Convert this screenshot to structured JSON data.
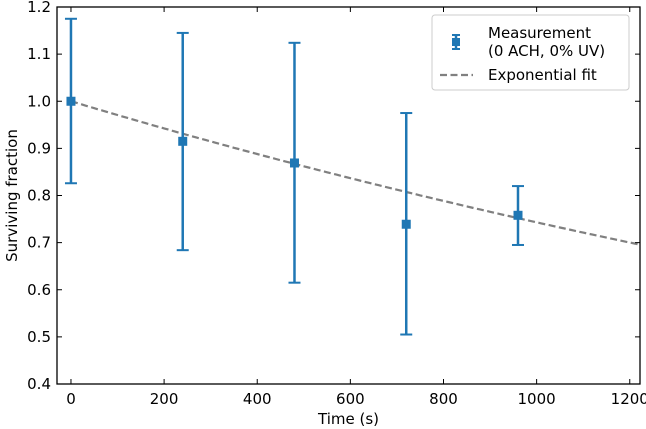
{
  "chart_data": {
    "type": "scatter",
    "title": "",
    "xlabel": "Time (s)",
    "ylabel": "Surviving fraction",
    "xlim": [
      -30,
      1222
    ],
    "ylim": [
      0.4,
      1.2
    ],
    "xticks": [
      0,
      200,
      400,
      600,
      800,
      1000,
      1200
    ],
    "yticks": [
      0.4,
      0.5,
      0.6,
      0.7,
      0.8,
      0.9,
      1.0,
      1.1,
      1.2
    ],
    "ytick_labels": [
      "0.4",
      "0.5",
      "0.6",
      "0.7",
      "0.8",
      "0.9",
      "1.0",
      "1.1",
      "1.2"
    ],
    "legend_position": "top-right",
    "series": [
      {
        "name": "Measurement (0 ACH, 0% UV)",
        "legend_line1": "Measurement",
        "legend_line2": "(0 ACH, 0% UV)",
        "kind": "errorbar",
        "color": "#1f77b4",
        "x": [
          0,
          240,
          480,
          720,
          960
        ],
        "y": [
          1.0,
          0.915,
          0.869,
          0.739,
          0.758
        ],
        "y_low": [
          0.826,
          0.684,
          0.615,
          0.505,
          0.695
        ],
        "y_high": [
          1.175,
          1.145,
          1.124,
          0.975,
          0.82
        ]
      },
      {
        "name": "Exponential fit",
        "kind": "line",
        "style": "dashed",
        "color": "#808080",
        "model": "exp(-k*t)",
        "k": 0.000297
      }
    ]
  }
}
